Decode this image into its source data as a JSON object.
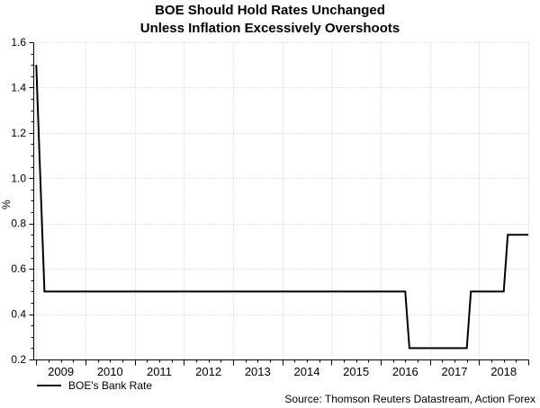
{
  "title": {
    "line1": "BOE Should Hold Rates Unchanged",
    "line2": "Unless Inflation Excessively Overshoots"
  },
  "legend": {
    "items": [
      {
        "label": "BOE's Bank Rate",
        "color": "#000000"
      }
    ]
  },
  "source_note": "Source: Thomson Reuters Datastream, Action Forex",
  "colors": {
    "line": "#000000",
    "grid": "#c8c8c8",
    "axis": "#000000",
    "text": "#000000",
    "background": "#ffffff"
  },
  "chart_data": {
    "type": "line",
    "title": "BOE Should Hold Rates Unchanged Unless Inflation Excessively Overshoots",
    "xlabel": "",
    "ylabel": "%",
    "ylim": [
      0.2,
      1.6
    ],
    "yticks": [
      0.2,
      0.4,
      0.6,
      0.8,
      1.0,
      1.2,
      1.4,
      1.6
    ],
    "ytick_labels": [
      "0.2",
      "0.4",
      "0.6",
      "0.8",
      "1.0",
      "1.2",
      "1.4",
      "1.6"
    ],
    "y_minor_step": 0.05,
    "xlim_decimal_years": [
      2008.94,
      2019.0
    ],
    "x_year_boundaries": [
      2009,
      2010,
      2011,
      2012,
      2013,
      2014,
      2015,
      2016,
      2017,
      2018,
      2019
    ],
    "x_tick_year_labels": [
      "2009",
      "2010",
      "2011",
      "2012",
      "2013",
      "2014",
      "2015",
      "2016",
      "2017",
      "2018"
    ],
    "x_minor_ticks_per_year": 4,
    "grid": "dotted",
    "legend_position": "bottom-left",
    "series": [
      {
        "name": "BOE's Bank Rate",
        "color": "#000000",
        "points": [
          {
            "date": "2009-01",
            "value": 1.5
          },
          {
            "date": "2009-02",
            "value": 1.0
          },
          {
            "date": "2009-03",
            "value": 0.5
          },
          {
            "date": "2016-07",
            "value": 0.5
          },
          {
            "date": "2016-08",
            "value": 0.25
          },
          {
            "date": "2017-10",
            "value": 0.25
          },
          {
            "date": "2017-11",
            "value": 0.5
          },
          {
            "date": "2018-07",
            "value": 0.5
          },
          {
            "date": "2018-08",
            "value": 0.75
          },
          {
            "date": "2018-12",
            "value": 0.75
          }
        ]
      }
    ]
  }
}
